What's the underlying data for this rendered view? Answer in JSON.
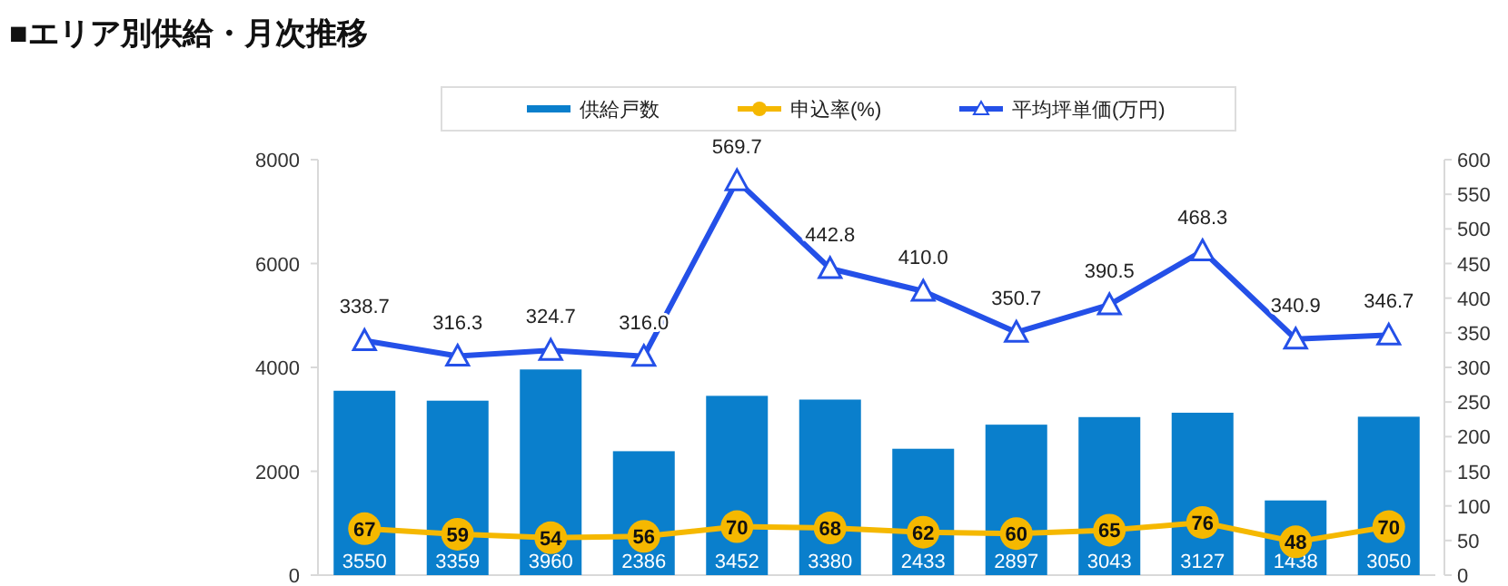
{
  "chart_data": {
    "type": "bar",
    "title": "■エリア別供給・月次推移",
    "categories": [
      null,
      null,
      null,
      null,
      null,
      null,
      null,
      null,
      null,
      null,
      null,
      null
    ],
    "series": [
      {
        "name": "供給戸数",
        "color": "#0a7fcc",
        "values": [
          3550,
          3359,
          3960,
          2386,
          3452,
          3380,
          2433,
          2897,
          3043,
          3127,
          1438,
          3050
        ]
      },
      {
        "name": "申込率(%)",
        "type": "line",
        "axis": "y2",
        "color": "#f5b800",
        "marker": "circle",
        "values": [
          67,
          59,
          54,
          56,
          70,
          68,
          62,
          60,
          65,
          76,
          48,
          70
        ]
      },
      {
        "name": "平均坪単価(万円)",
        "type": "line",
        "axis": "y2",
        "color": "#2450e8",
        "marker": "triangle",
        "values": [
          338.7,
          316.3,
          324.7,
          316.0,
          569.7,
          442.8,
          410.0,
          350.7,
          390.5,
          468.3,
          340.9,
          346.7
        ],
        "value_labels": [
          "338.7",
          "316.3",
          "324.7",
          "316.0",
          "569.7",
          "442.8",
          "410.0",
          "350.7",
          "390.5",
          "468.3",
          "340.9",
          "346.7"
        ]
      }
    ],
    "ylim": [
      0,
      8000
    ],
    "yticks": [
      0,
      2000,
      4000,
      6000,
      8000
    ],
    "y2lim": [
      0,
      600
    ],
    "y2ticks": [
      0,
      50,
      100,
      150,
      200,
      250,
      300,
      350,
      400,
      450,
      500,
      550,
      600
    ],
    "data_labels": true,
    "legend": "top",
    "grid": false
  }
}
